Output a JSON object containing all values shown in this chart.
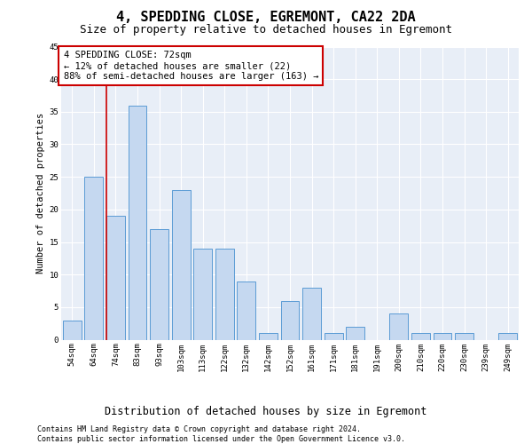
{
  "title": "4, SPEDDING CLOSE, EGREMONT, CA22 2DA",
  "subtitle": "Size of property relative to detached houses in Egremont",
  "xlabel": "Distribution of detached houses by size in Egremont",
  "ylabel": "Number of detached properties",
  "categories": [
    "54sqm",
    "64sqm",
    "74sqm",
    "83sqm",
    "93sqm",
    "103sqm",
    "113sqm",
    "122sqm",
    "132sqm",
    "142sqm",
    "152sqm",
    "161sqm",
    "171sqm",
    "181sqm",
    "191sqm",
    "200sqm",
    "210sqm",
    "220sqm",
    "230sqm",
    "239sqm",
    "249sqm"
  ],
  "values": [
    3,
    25,
    19,
    36,
    17,
    23,
    14,
    14,
    9,
    1,
    6,
    8,
    1,
    2,
    0,
    4,
    1,
    1,
    1,
    0,
    1
  ],
  "bar_color": "#c5d8f0",
  "bar_edge_color": "#5b9bd5",
  "annotation_text_line1": "4 SPEDDING CLOSE: 72sqm",
  "annotation_text_line2": "← 12% of detached houses are smaller (22)",
  "annotation_text_line3": "88% of semi-detached houses are larger (163) →",
  "annotation_box_color": "#ffffff",
  "annotation_box_edge_color": "#cc0000",
  "vline_color": "#cc0000",
  "vline_x": 1.575,
  "ylim": [
    0,
    45
  ],
  "yticks": [
    0,
    5,
    10,
    15,
    20,
    25,
    30,
    35,
    40,
    45
  ],
  "background_color": "#e8eef7",
  "footer_line1": "Contains HM Land Registry data © Crown copyright and database right 2024.",
  "footer_line2": "Contains public sector information licensed under the Open Government Licence v3.0.",
  "title_fontsize": 11,
  "subtitle_fontsize": 9,
  "xlabel_fontsize": 8.5,
  "ylabel_fontsize": 7.5,
  "tick_fontsize": 6.5,
  "annotation_fontsize": 7.5,
  "footer_fontsize": 6
}
